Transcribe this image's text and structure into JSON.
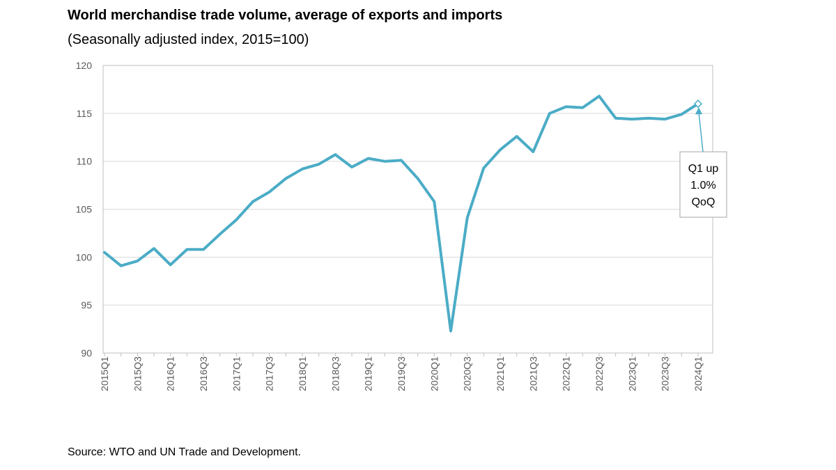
{
  "chart_data": {
    "type": "line",
    "title": "World merchandise trade volume, average of exports and imports",
    "subtitle": "(Seasonally adjusted index, 2015=100)",
    "source": "Source: WTO and UN Trade and Development.",
    "xlabel": "",
    "ylabel": "",
    "ylim": [
      90,
      120
    ],
    "yticks": [
      90,
      95,
      100,
      105,
      110,
      115,
      120
    ],
    "grid": true,
    "legend": "none",
    "categories": [
      "2015Q1",
      "2015Q2",
      "2015Q3",
      "2015Q4",
      "2016Q1",
      "2016Q2",
      "2016Q3",
      "2016Q4",
      "2017Q1",
      "2017Q2",
      "2017Q3",
      "2017Q4",
      "2018Q1",
      "2018Q2",
      "2018Q3",
      "2018Q4",
      "2019Q1",
      "2019Q2",
      "2019Q3",
      "2019Q4",
      "2020Q1",
      "2020Q2",
      "2020Q3",
      "2020Q4",
      "2021Q1",
      "2021Q2",
      "2021Q3",
      "2021Q4",
      "2022Q1",
      "2022Q2",
      "2022Q3",
      "2022Q4",
      "2023Q1",
      "2023Q2",
      "2023Q3",
      "2023Q4",
      "2024Q1"
    ],
    "tick_labels": [
      "2015Q1",
      "2015Q3",
      "2016Q1",
      "2016Q3",
      "2017Q1",
      "2017Q3",
      "2018Q1",
      "2018Q3",
      "2019Q1",
      "2019Q3",
      "2020Q1",
      "2020Q3",
      "2021Q1",
      "2021Q3",
      "2022Q1",
      "2022Q3",
      "2023Q1",
      "2023Q3",
      "2024Q1"
    ],
    "series": [
      {
        "name": "World merchandise trade volume",
        "color": "#4bacc6",
        "values": [
          100.5,
          99.1,
          99.6,
          100.9,
          99.2,
          100.8,
          100.8,
          102.4,
          103.9,
          105.8,
          106.8,
          108.2,
          109.2,
          109.7,
          110.7,
          109.4,
          110.3,
          110.0,
          110.1,
          108.2,
          105.8,
          92.3,
          104.1,
          109.3,
          111.2,
          112.6,
          111.0,
          115.0,
          115.7,
          115.6,
          116.8,
          114.5,
          114.4,
          114.5,
          114.4,
          114.9,
          116.0
        ]
      }
    ],
    "annotation": {
      "lines": [
        "Q1 up",
        "1.0%",
        "QoQ"
      ],
      "target": "2024Q1"
    }
  }
}
